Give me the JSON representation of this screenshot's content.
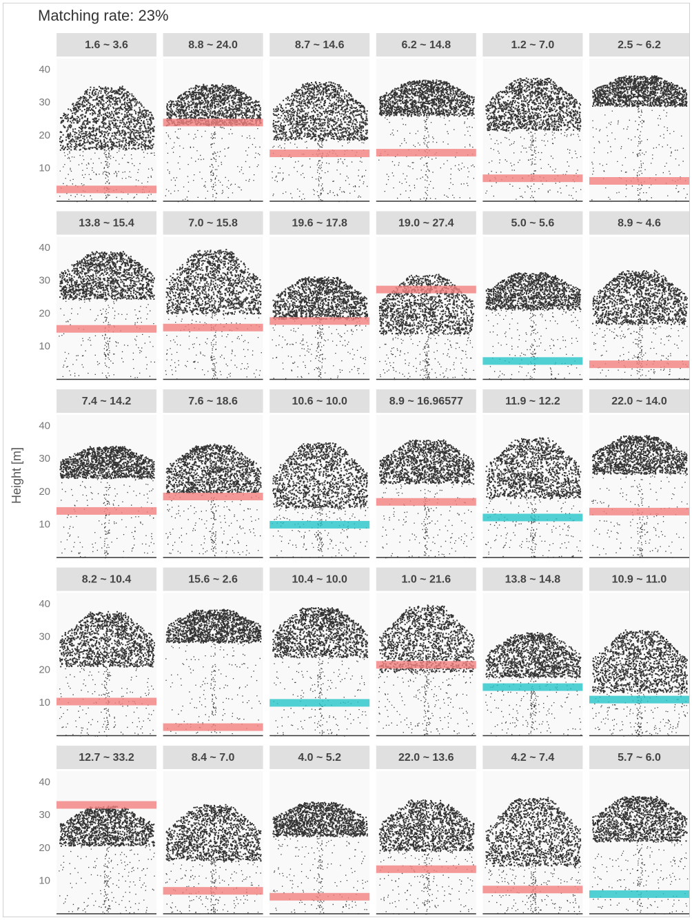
{
  "chart_data": {
    "type": "band",
    "title": "Matching rate: 23%",
    "ylabel": "Height [m]",
    "ylim": [
      0,
      43.5
    ],
    "yticks": [
      10,
      20,
      30,
      40
    ],
    "panels": [
      {
        "label": "1.6 ~ 3.6",
        "value": 3.6,
        "color": "#f28080"
      },
      {
        "label": "8.8 ~ 24.0",
        "value": 24.0,
        "color": "#f28080"
      },
      {
        "label": "8.7 ~ 14.6",
        "value": 14.6,
        "color": "#f28080"
      },
      {
        "label": "6.2 ~ 14.8",
        "value": 14.8,
        "color": "#f28080"
      },
      {
        "label": "1.2 ~ 7.0",
        "value": 7.0,
        "color": "#f28080"
      },
      {
        "label": "2.5 ~ 6.2",
        "value": 6.2,
        "color": "#f28080"
      },
      {
        "label": "13.8 ~ 15.4",
        "value": 15.4,
        "color": "#f28080"
      },
      {
        "label": "7.0 ~ 15.8",
        "value": 15.8,
        "color": "#f28080"
      },
      {
        "label": "19.6 ~ 17.8",
        "value": 17.8,
        "color": "#f28080"
      },
      {
        "label": "19.0 ~ 27.4",
        "value": 27.4,
        "color": "#f28080"
      },
      {
        "label": "5.0 ~ 5.6",
        "value": 5.6,
        "color": "#26c6c9"
      },
      {
        "label": "8.9 ~ 4.6",
        "value": 4.6,
        "color": "#f28080"
      },
      {
        "label": "7.4 ~ 14.2",
        "value": 14.2,
        "color": "#f28080"
      },
      {
        "label": "7.6 ~ 18.6",
        "value": 18.6,
        "color": "#f28080"
      },
      {
        "label": "10.6 ~ 10.0",
        "value": 10.0,
        "color": "#26c6c9"
      },
      {
        "label": "8.9 ~ 16.96577",
        "value": 16.96577,
        "color": "#f28080"
      },
      {
        "label": "11.9 ~ 12.2",
        "value": 12.2,
        "color": "#26c6c9"
      },
      {
        "label": "22.0 ~ 14.0",
        "value": 14.0,
        "color": "#f28080"
      },
      {
        "label": "8.2 ~ 10.4",
        "value": 10.4,
        "color": "#f28080"
      },
      {
        "label": "15.6 ~ 2.6",
        "value": 2.6,
        "color": "#f28080"
      },
      {
        "label": "10.4 ~ 10.0",
        "value": 10.0,
        "color": "#26c6c9"
      },
      {
        "label": "1.0 ~ 21.6",
        "value": 21.6,
        "color": "#f28080"
      },
      {
        "label": "13.8 ~ 14.8",
        "value": 14.8,
        "color": "#26c6c9"
      },
      {
        "label": "10.9 ~ 11.0",
        "value": 11.0,
        "color": "#26c6c9"
      },
      {
        "label": "12.7 ~ 33.2",
        "value": 33.2,
        "color": "#f28080"
      },
      {
        "label": "8.4 ~ 7.0",
        "value": 7.0,
        "color": "#f28080"
      },
      {
        "label": "4.0 ~ 5.2",
        "value": 5.2,
        "color": "#f28080"
      },
      {
        "label": "22.0 ~ 13.6",
        "value": 13.6,
        "color": "#f28080"
      },
      {
        "label": "4.2 ~ 7.4",
        "value": 7.4,
        "color": "#f28080"
      },
      {
        "label": "5.7 ~ 6.0",
        "value": 6.0,
        "color": "#26c6c9"
      }
    ]
  }
}
